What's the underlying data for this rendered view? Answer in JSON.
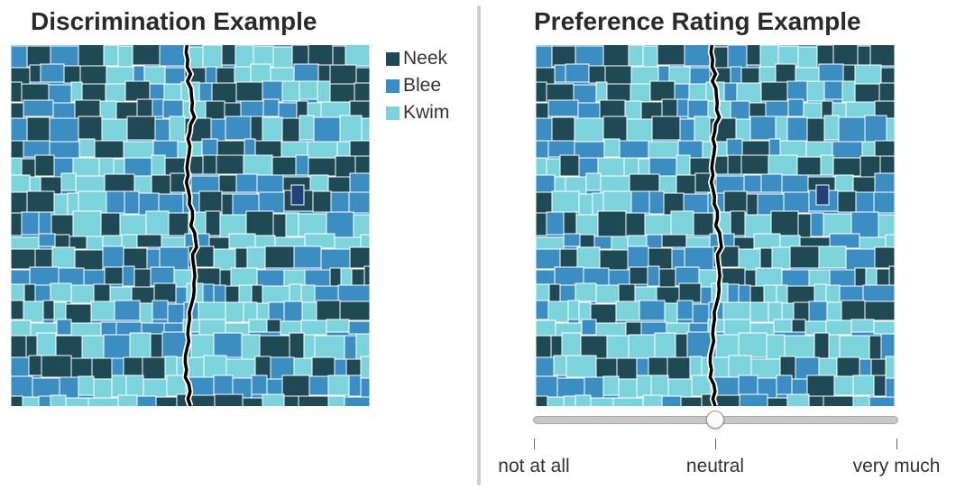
{
  "left": {
    "title": "Discrimination Example"
  },
  "right": {
    "title": "Preference Rating Example"
  },
  "legend": {
    "items": [
      {
        "label": "Neek",
        "color": "#1f4a55"
      },
      {
        "label": "Blee",
        "color": "#3b8dc2"
      },
      {
        "label": "Kwim",
        "color": "#7dd3dc"
      }
    ]
  },
  "slider": {
    "value_fraction": 0.5,
    "labels": {
      "min": "not at all",
      "mid": "neutral",
      "max": "very much"
    }
  },
  "colors": {
    "neek": "#1f4a55",
    "blee": "#3b8dc2",
    "kwim": "#7dd3dc",
    "highlight": "#23427a",
    "border_line": "#000000"
  }
}
